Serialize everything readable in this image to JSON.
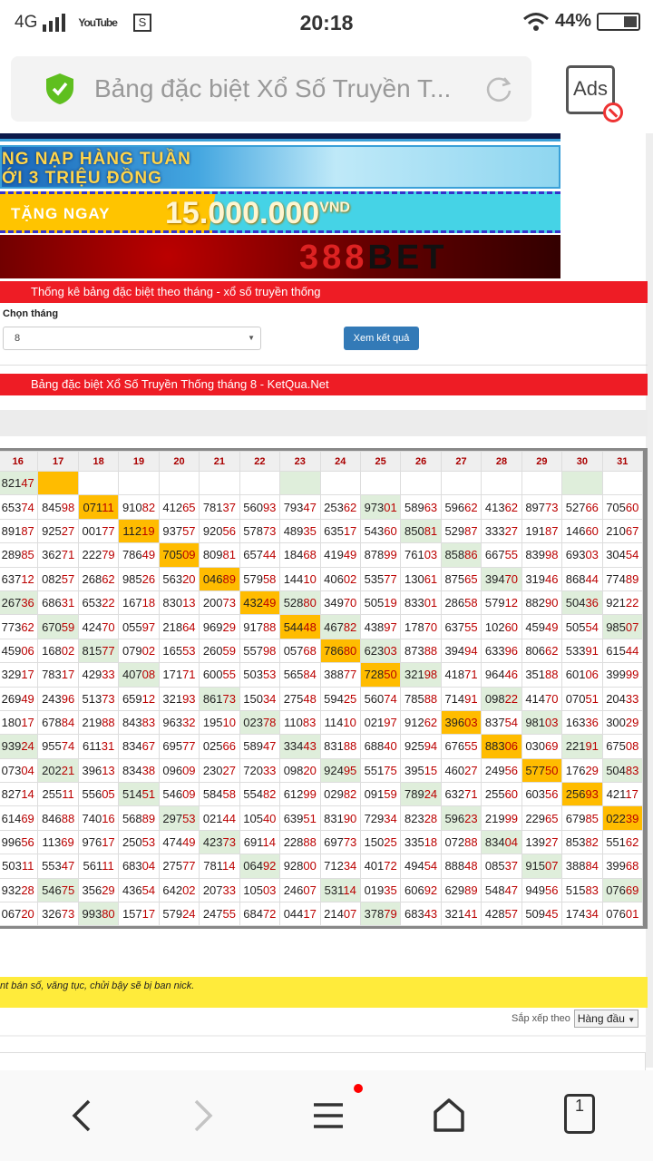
{
  "status": {
    "network": "4G",
    "time": "20:18",
    "battery": "44%",
    "app_icon_text": "YouTube",
    "s_icon_text": "S"
  },
  "browser": {
    "title": "Bảng đặc biệt Xổ Số Truyền T...",
    "ads_label": "Ads",
    "tab_count": "1"
  },
  "banners": {
    "b2_line1": "NG NẠP HÀNG TUẦN",
    "b2_line2": "ỚI 3 TRIỆU ĐỒNG",
    "b3_label": "TẶNG NGAY",
    "b3_amount": "15.000.000",
    "b3_unit": "VND",
    "b4_brand_num": "388",
    "b4_brand_word": "BET"
  },
  "form": {
    "section_title": "Thống kê bảng đặc biệt theo tháng - xổ số truyền thống",
    "month_label": "Chọn tháng",
    "month_value": "8",
    "submit_label": "Xem kết quả"
  },
  "table": {
    "title": "Bảng đặc biệt Xổ Số Truyền Thống tháng 8 - KetQua.Net",
    "headers": [
      "16",
      "17",
      "18",
      "19",
      "20",
      "21",
      "22",
      "23",
      "24",
      "25",
      "26",
      "27",
      "28",
      "29",
      "30",
      "31"
    ],
    "colors": {
      "orange": "#ffbc00",
      "green": "#dfeedb",
      "tail": "#bb0000"
    },
    "rows": [
      {
        "marks": "go-----g------g-",
        "cells": [
          "82147",
          "",
          "",
          "",
          "",
          "",
          "",
          "",
          "",
          "",
          "",
          "",
          "",
          "",
          "",
          ""
        ]
      },
      {
        "marks": "--o------g------",
        "cells": [
          "65374",
          "84598",
          "07111",
          "91082",
          "41265",
          "78137",
          "56093",
          "79347",
          "25362",
          "97301",
          "58963",
          "59662",
          "41362",
          "89773",
          "52766",
          "70560"
        ]
      },
      {
        "marks": "---o------g-----",
        "cells": [
          "89187",
          "92527",
          "00177",
          "11219",
          "93757",
          "92056",
          "57873",
          "48935",
          "63517",
          "54360",
          "85081",
          "52987",
          "33327",
          "19187",
          "14660",
          "21067"
        ]
      },
      {
        "marks": "----o------g----",
        "cells": [
          "28985",
          "36271",
          "22279",
          "78649",
          "70509",
          "80981",
          "65744",
          "18468",
          "41949",
          "87899",
          "76103",
          "85886",
          "66755",
          "83998",
          "69303",
          "30454"
        ]
      },
      {
        "marks": "-----o------g---",
        "cells": [
          "63712",
          "08257",
          "26862",
          "98526",
          "56320",
          "04689",
          "57958",
          "14410",
          "40602",
          "53577",
          "13061",
          "87565",
          "39470",
          "31946",
          "86844",
          "77489"
        ]
      },
      {
        "marks": "g-----og------g-",
        "cells": [
          "26736",
          "68631",
          "65322",
          "16718",
          "83013",
          "20073",
          "43249",
          "52880",
          "34970",
          "50519",
          "83301",
          "28658",
          "57912",
          "88290",
          "50436",
          "92122"
        ]
      },
      {
        "marks": "-g-----og------g",
        "cells": [
          "77362",
          "67059",
          "42470",
          "05597",
          "21864",
          "96929",
          "91788",
          "54448",
          "46782",
          "43897",
          "17870",
          "63755",
          "10260",
          "45949",
          "50554",
          "98507"
        ]
      },
      {
        "marks": "--g-----og------",
        "cells": [
          "45906",
          "16802",
          "81577",
          "07902",
          "16553",
          "26059",
          "55798",
          "05768",
          "78680",
          "62303",
          "87388",
          "39494",
          "63396",
          "80662",
          "53391",
          "61544"
        ]
      },
      {
        "marks": "---g-----og-----",
        "cells": [
          "32917",
          "78317",
          "42933",
          "40708",
          "17171",
          "60055",
          "50353",
          "56584",
          "38877",
          "72850",
          "32198",
          "41871",
          "96446",
          "35188",
          "60106",
          "39999"
        ]
      },
      {
        "marks": "-----g------g---",
        "cells": [
          "26949",
          "24396",
          "51373",
          "65912",
          "32193",
          "86173",
          "15034",
          "27548",
          "59425",
          "56074",
          "78588",
          "71491",
          "09822",
          "41470",
          "07051",
          "20433"
        ]
      },
      {
        "marks": "------g----o-g--",
        "cells": [
          "18017",
          "67884",
          "21988",
          "84383",
          "96332",
          "19510",
          "02378",
          "11083",
          "11410",
          "02197",
          "91262",
          "39603",
          "83754",
          "98103",
          "16336",
          "30029"
        ]
      },
      {
        "marks": "g------g----o-g-",
        "cells": [
          "93924",
          "95574",
          "61131",
          "83467",
          "69577",
          "02566",
          "58947",
          "33443",
          "83188",
          "68840",
          "92594",
          "67655",
          "88306",
          "03069",
          "22191",
          "67508"
        ]
      },
      {
        "marks": "-g------g----o-g",
        "cells": [
          "07304",
          "20221",
          "39613",
          "83438",
          "09609",
          "23027",
          "72033",
          "09820",
          "92495",
          "55175",
          "39515",
          "46027",
          "24956",
          "57750",
          "17629",
          "50483"
        ]
      },
      {
        "marks": "---g------g---o-",
        "cells": [
          "82714",
          "25511",
          "55605",
          "51451",
          "54609",
          "58458",
          "55482",
          "61299",
          "02982",
          "09159",
          "78924",
          "63271",
          "25560",
          "60356",
          "25693",
          "42117"
        ]
      },
      {
        "marks": "----g------g---o",
        "cells": [
          "61469",
          "84688",
          "74016",
          "56889",
          "29753",
          "02144",
          "10540",
          "63951",
          "83190",
          "72934",
          "82328",
          "59623",
          "21999",
          "22965",
          "67985",
          "02239"
        ]
      },
      {
        "marks": "-----g------g---",
        "cells": [
          "99656",
          "11369",
          "97617",
          "25053",
          "47449",
          "42373",
          "69114",
          "22888",
          "69773",
          "15025",
          "33518",
          "07288",
          "83404",
          "13927",
          "85382",
          "55162"
        ]
      },
      {
        "marks": "------g------g--",
        "cells": [
          "50311",
          "55347",
          "56111",
          "68304",
          "27577",
          "78114",
          "06492",
          "92800",
          "71234",
          "40172",
          "49454",
          "88848",
          "08537",
          "91507",
          "38884",
          "39968"
        ]
      },
      {
        "marks": "-g------g------g",
        "cells": [
          "93228",
          "54675",
          "35629",
          "43654",
          "64202",
          "20733",
          "10503",
          "24607",
          "53114",
          "01935",
          "60692",
          "62989",
          "54847",
          "94956",
          "51583",
          "07669"
        ]
      },
      {
        "marks": "--g------g------",
        "cells": [
          "06720",
          "32673",
          "99380",
          "15717",
          "57924",
          "24755",
          "68472",
          "04417",
          "21407",
          "37879",
          "68343",
          "32141",
          "42857",
          "50945",
          "17434",
          "07601"
        ]
      }
    ]
  },
  "comments": {
    "notice": "nt bán số, văng tục, chửi bậy sẽ bị ban nick.",
    "sort_label": "Sắp xếp theo",
    "sort_value": "Hàng đầu"
  },
  "accent": {
    "red": "#ee1c25",
    "blue": "#337ab7",
    "yellow": "#ffeb3b"
  }
}
